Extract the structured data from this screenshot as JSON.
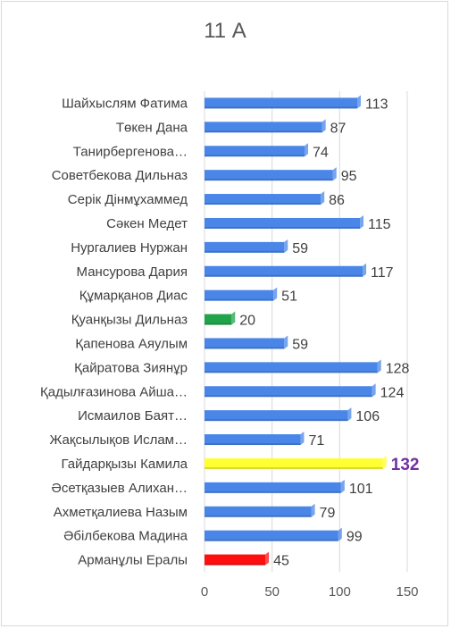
{
  "chart_data": {
    "type": "bar",
    "orientation": "horizontal",
    "title": "11 А",
    "categories": [
      "Шайхыслям Фатима",
      "Төкен Дана",
      "Танирбергенова…",
      "Советбекова Дильназ",
      "Серік Дінмұхаммед",
      "Сәкен Медет",
      "Нургалиев Нуржан",
      "Мансурова Дария",
      "Құмарқанов Диас",
      "Қуанқызы Дильназ",
      "Қапенова Аяулым",
      "Қайратова Зиянұр",
      "Қадылғазинова Айша…",
      "Исмаилов Баят…",
      "Жақсылықов Ислам…",
      "Гайдарқызы Камила",
      "Әсетқазыев Алихан…",
      "Ахметқалиева Назым",
      "Әбілбекова Мадина",
      "Арманұлы Ералы"
    ],
    "values": [
      113,
      87,
      74,
      95,
      86,
      115,
      59,
      117,
      51,
      20,
      59,
      128,
      124,
      106,
      71,
      132,
      101,
      79,
      99,
      45
    ],
    "colors": {
      "default": "#4a86e8",
      "Қуанқызы Дильназ": "#21a34a",
      "Гайдарқызы Камила": "#ffff33",
      "Арманұлы Ералы": "#ff1010"
    },
    "highlight_label_color": "#7030a0",
    "highlight_category": "Гайдарқызы Камила",
    "xlim": [
      0,
      150
    ],
    "xticks": [
      0,
      50,
      100,
      150
    ],
    "grid": true,
    "xlabel": "",
    "ylabel": ""
  }
}
